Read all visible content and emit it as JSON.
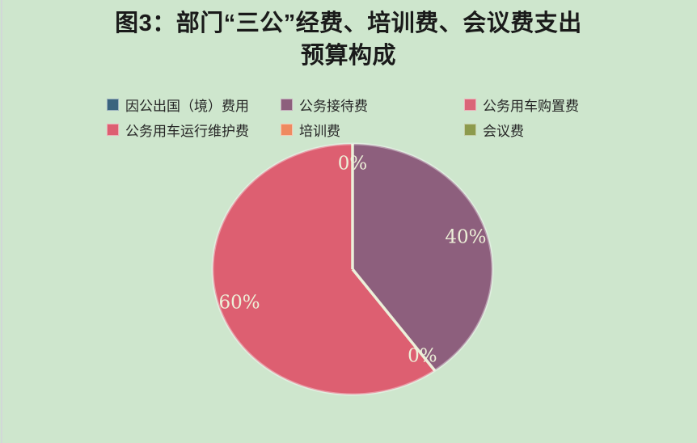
{
  "window": {
    "background": "#cee6cd"
  },
  "title": {
    "line1": "图3：部门“三公”经费、培训费、会议费支出",
    "line2": "预算构成"
  },
  "chart_data": {
    "type": "pie",
    "title": "图3：部门“三公”经费、培训费、会议费支出预算构成",
    "categories": [
      "因公出国（境）费用",
      "公务接待费",
      "公务用车购置费",
      "公务用车运行维护费",
      "培训费",
      "会议费"
    ],
    "values": [
      0,
      40,
      0,
      60,
      0,
      0
    ],
    "unit": "%",
    "colors": [
      "#3a647e",
      "#8d5f7d",
      "#da6577",
      "#dd5f71",
      "#ef8a60",
      "#8d9b4d"
    ],
    "visible_data_labels": [
      "0%",
      "40%",
      "0%",
      "60%"
    ],
    "legend_position": "top",
    "start_angle_deg": 0,
    "direction": "clockwise",
    "label_color": "#edf0d8",
    "divider_color": "#ecf0da"
  }
}
